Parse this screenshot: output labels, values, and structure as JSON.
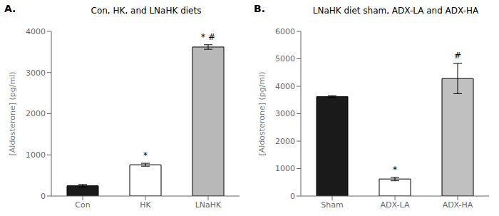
{
  "chart_data": [
    {
      "type": "bar",
      "panel_label": "A.",
      "title": "Con, HK, and LNaHK diets",
      "categories": [
        "Con",
        "HK",
        "LNaHK"
      ],
      "values": [
        250,
        760,
        3620
      ],
      "errors": [
        30,
        35,
        55
      ],
      "colors": [
        "#1a1a1a",
        "#ffffff",
        "#b8b8b8"
      ],
      "ylim": [
        0,
        4000
      ],
      "yticks": [
        0,
        1000,
        2000,
        3000,
        4000
      ],
      "ylabel": "[Aldosterone] (pg/ml)",
      "grid": false,
      "annotations": [
        {
          "category": "HK",
          "text": "*"
        },
        {
          "category": "LNaHK",
          "text": "* #"
        }
      ]
    },
    {
      "type": "bar",
      "panel_label": "B.",
      "title": "LNaHK diet sham, ADX-LA and ADX-HA",
      "categories": [
        "Sham",
        "ADX-LA",
        "ADX-HA"
      ],
      "values": [
        3620,
        620,
        4280
      ],
      "errors": [
        35,
        65,
        550
      ],
      "colors": [
        "#1a1a1a",
        "#ffffff",
        "#c0c0c0"
      ],
      "ylim": [
        0,
        6000
      ],
      "yticks": [
        0,
        1000,
        2000,
        3000,
        4000,
        5000,
        6000
      ],
      "ylabel": "[Aldosterone] (pg/ml)",
      "grid": false,
      "annotations": [
        {
          "category": "ADX-LA",
          "text": "*"
        },
        {
          "category": "ADX-HA",
          "text": "#"
        }
      ]
    }
  ]
}
